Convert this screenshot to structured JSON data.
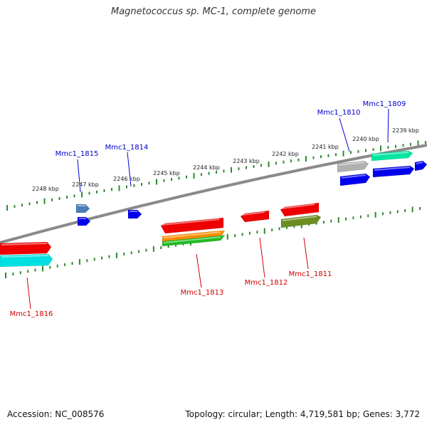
{
  "title": "Magnetococcus sp. MC-1, complete genome",
  "footer": {
    "accession": "Accession: NC_008576",
    "summary": "Topology: circular; Length: 4,719,581 bp; Genes: 3,772"
  },
  "colors": {
    "backbone": "#888888",
    "tick": "#2e8b2e",
    "forward_label": "#0000cc",
    "reverse_label": "#cc0000"
  },
  "scale_labels": [
    "2239 kbp",
    "2240 kbp",
    "2241 kbp",
    "2242 kbp",
    "2243 kbp",
    "2244 kbp",
    "2245 kbp",
    "2246 kbp",
    "2247 kbp",
    "2248 kbp"
  ],
  "genes_forward": [
    {
      "id": "Mmc1_1809",
      "colors": [
        "#00e5a0",
        "#0000ee"
      ]
    },
    {
      "id": "Mmc1_1810",
      "colors": [
        "#b0b0b0",
        "#0000ee"
      ]
    },
    {
      "id": "Mmc1_1814",
      "colors": [
        "#0000ee"
      ]
    },
    {
      "id": "Mmc1_1815",
      "colors": [
        "#4a7fb5",
        "#0000ee"
      ]
    }
  ],
  "genes_reverse": [
    {
      "id": "Mmc1_1811",
      "colors": [
        "#ee0000",
        "#6b8e23"
      ]
    },
    {
      "id": "Mmc1_1812",
      "colors": [
        "#ee0000"
      ]
    },
    {
      "id": "Mmc1_1813",
      "colors": [
        "#ee0000",
        "#ff8c00",
        "#22bb22"
      ]
    },
    {
      "id": "Mmc1_1816",
      "colors": [
        "#ee0000",
        "#00e0e0"
      ]
    }
  ]
}
